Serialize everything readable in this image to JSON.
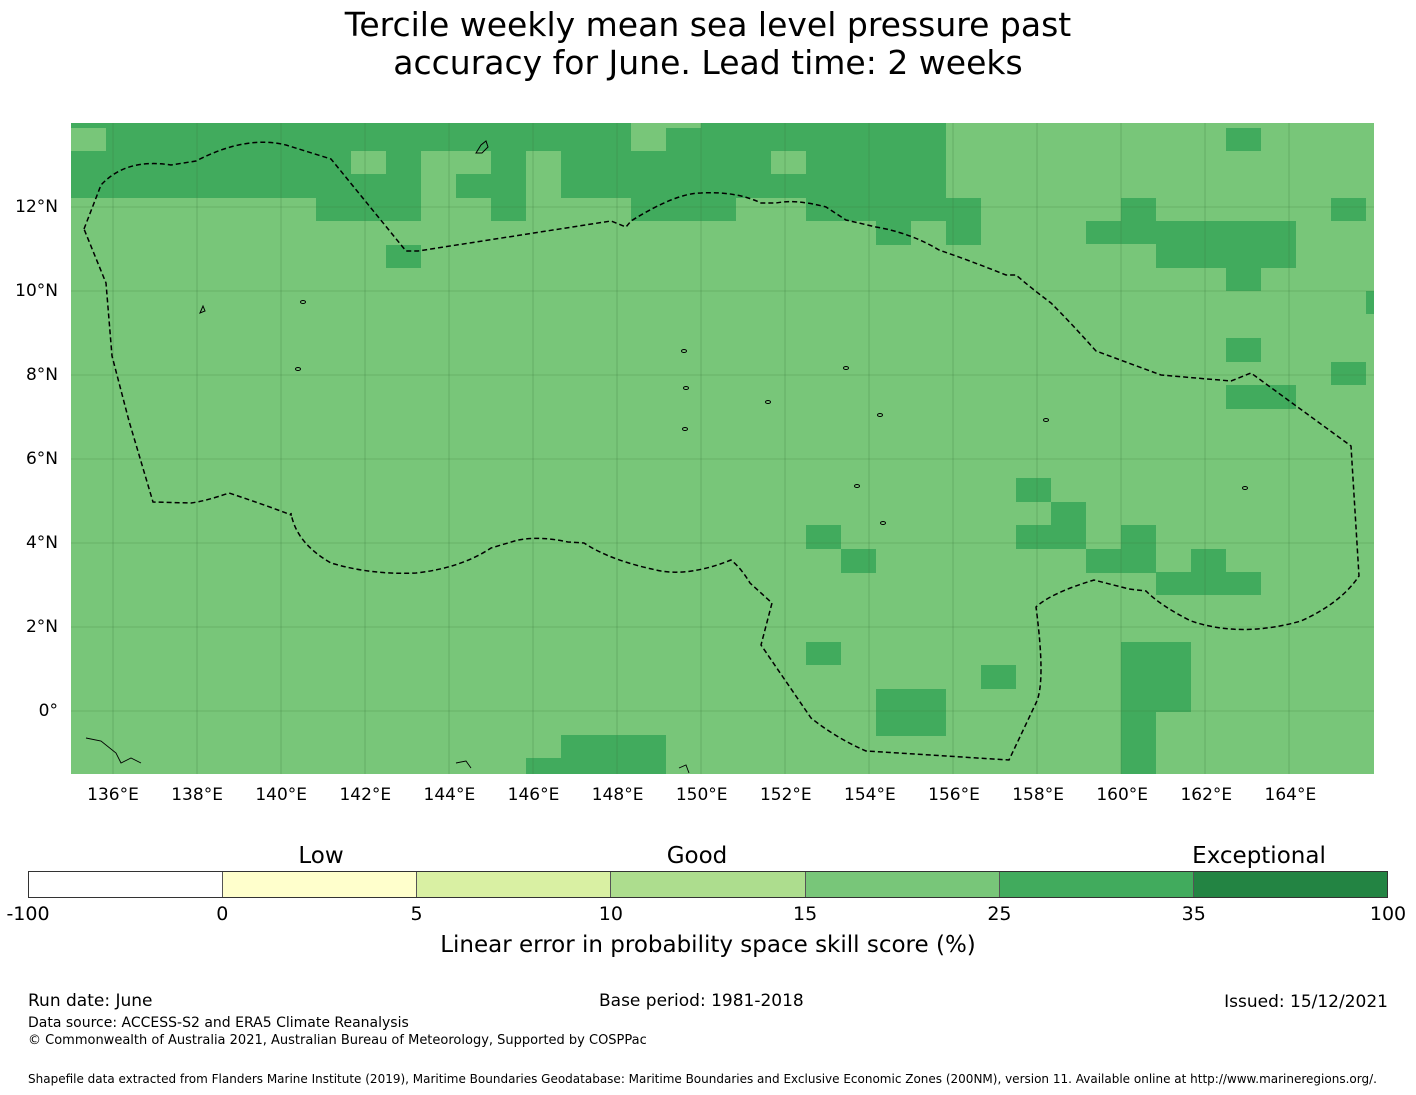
{
  "title_line1": "Tercile weekly mean sea level pressure past",
  "title_line2": "accuracy for June. Lead time: 2 weeks",
  "map": {
    "lon_labels": [
      "136°E",
      "138°E",
      "140°E",
      "142°E",
      "144°E",
      "146°E",
      "148°E",
      "150°E",
      "152°E",
      "154°E",
      "156°E",
      "158°E",
      "160°E",
      "162°E",
      "164°E"
    ],
    "lat_labels": [
      "12°N",
      "10°N",
      "8°N",
      "6°N",
      "4°N",
      "2°N",
      "0°"
    ],
    "base_color": "#78c679",
    "high_color": "#41ab5d",
    "alt_color": "#addd8e",
    "coast_color": "#000000"
  },
  "colorbar": {
    "categories": [
      "Low",
      "Good",
      "Exceptional"
    ],
    "ticks": [
      "-100",
      "0",
      "5",
      "10",
      "15",
      "25",
      "35",
      "100"
    ],
    "colors": [
      "#ffffff",
      "#ffffcc",
      "#d9f0a3",
      "#addd8e",
      "#78c679",
      "#41ab5d",
      "#238443"
    ],
    "label": "Linear error in probability space skill score (%)"
  },
  "footer": {
    "run_date": "Run date: June",
    "base_period": "Base period: 1981-2018",
    "issued": "Issued: 15/12/2021",
    "data_source": "Data source: ACCESS-S2 and ERA5 Climate Reanalysis",
    "copyright": "© Commonwealth of Australia 2021, Australian Bureau of Meteorology, Supported by COSPPac",
    "shapefile": "Shapefile data extracted from Flanders Marine Institute (2019), Maritime Boundaries Geodatabase: Maritime Boundaries and Exclusive Economic Zones (200NM), version 11. Available online at http://www.marineregions.org/."
  }
}
